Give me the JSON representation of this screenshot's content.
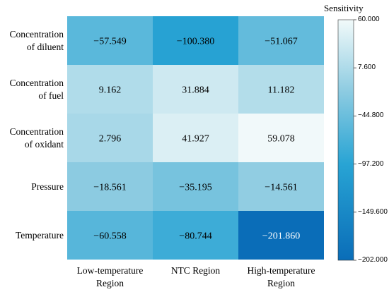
{
  "chart_data": {
    "type": "heatmap",
    "rows": [
      "Concentration of diluent",
      "Concentration of fuel",
      "Concentration of oxidant",
      "Pressure",
      "Temperature"
    ],
    "row_label_lines": [
      [
        "Concentration",
        "of diluent"
      ],
      [
        "Concentration",
        "of fuel"
      ],
      [
        "Concentration",
        "of oxidant"
      ],
      [
        "Pressure"
      ],
      [
        "Temperature"
      ]
    ],
    "columns": [
      "Low-temperature Region",
      "NTC Region",
      "High-temperature Region"
    ],
    "column_label_lines": [
      [
        "Low-temperature",
        "Region"
      ],
      [
        "NTC Region"
      ],
      [
        "High-temperature",
        "Region"
      ]
    ],
    "values": [
      [
        -57.549,
        -100.38,
        -51.067
      ],
      [
        9.162,
        31.884,
        11.182
      ],
      [
        2.796,
        41.927,
        59.078
      ],
      [
        -18.561,
        -35.195,
        -14.561
      ],
      [
        -60.558,
        -80.744,
        -201.86
      ]
    ],
    "cell_labels": [
      [
        "−57.549",
        "−100.380",
        "−51.067"
      ],
      [
        "9.162",
        "31.884",
        "11.182"
      ],
      [
        "2.796",
        "41.927",
        "59.078"
      ],
      [
        "−18.561",
        "−35.195",
        "−14.561"
      ],
      [
        "−60.558",
        "−80.744",
        "−201.860"
      ]
    ],
    "colorbar": {
      "title": "Sensitivity",
      "range": [
        -202.0,
        60.0
      ],
      "ticks": [
        60.0,
        7.6,
        -44.8,
        -97.2,
        -149.6,
        -202.0
      ],
      "tick_labels": [
        "60.000",
        "7.600",
        "−44.800",
        "−97.200",
        "−149.600",
        "−202.000"
      ],
      "color_low": "#0a6db8",
      "color_high": "#f2fafa"
    }
  }
}
